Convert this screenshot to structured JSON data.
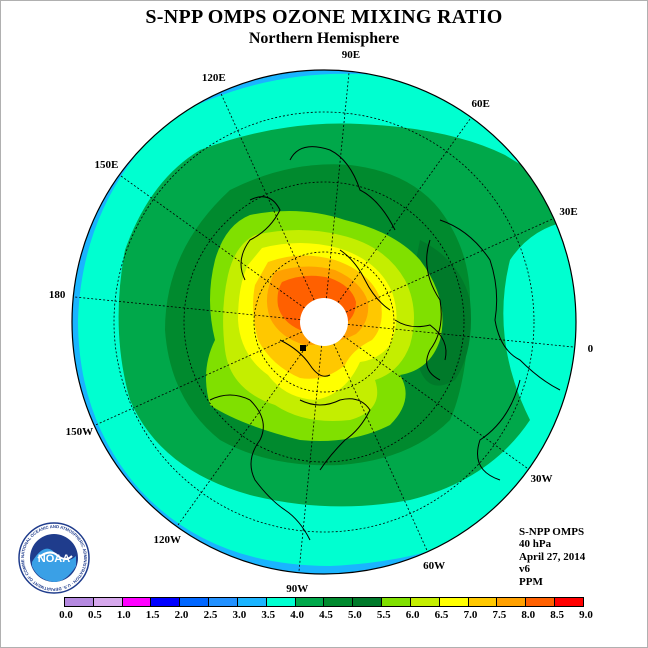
{
  "title": "S-NPP OMPS OZONE MIXING RATIO",
  "subtitle": "Northern Hemisphere",
  "longitude_labels": [
    {
      "text": "90E",
      "lon": 90
    },
    {
      "text": "60E",
      "lon": 60
    },
    {
      "text": "30E",
      "lon": 30
    },
    {
      "text": "0",
      "lon": 0
    },
    {
      "text": "30W",
      "lon": -30
    },
    {
      "text": "60W",
      "lon": -60
    },
    {
      "text": "90W",
      "lon": -90
    },
    {
      "text": "120W",
      "lon": -120
    },
    {
      "text": "150W",
      "lon": -150
    },
    {
      "text": "180",
      "lon": 180
    },
    {
      "text": "150E",
      "lon": 150
    },
    {
      "text": "120E",
      "lon": 120
    }
  ],
  "info": {
    "instrument": "S-NPP OMPS",
    "level": "40 hPa",
    "date": "April 27, 2014",
    "version": "v6",
    "units": "PPM"
  },
  "logo": {
    "text": "NOAA",
    "ring_text": "NATIONAL OCEANIC AND ATMOSPHERIC ADMINISTRATION · U.S. DEPARTMENT OF COMMERCE"
  },
  "colorbar": {
    "ticks": [
      "0.0",
      "0.5",
      "1.0",
      "1.5",
      "2.0",
      "2.5",
      "3.0",
      "3.5",
      "4.0",
      "4.5",
      "5.0",
      "5.5",
      "6.0",
      "6.5",
      "7.0",
      "7.5",
      "8.0",
      "8.5",
      "9.0"
    ],
    "colors": [
      "#b589e0",
      "#d6a8ec",
      "#ff00ff",
      "#0000ff",
      "#0066ff",
      "#2291ff",
      "#1ab4ff",
      "#00ffd0",
      "#00a84a",
      "#008a2e",
      "#007a2a",
      "#80e000",
      "#c4ee00",
      "#ffff00",
      "#ffc800",
      "#ffa000",
      "#ff6000",
      "#ff0000",
      "#8b5a2b"
    ]
  }
}
